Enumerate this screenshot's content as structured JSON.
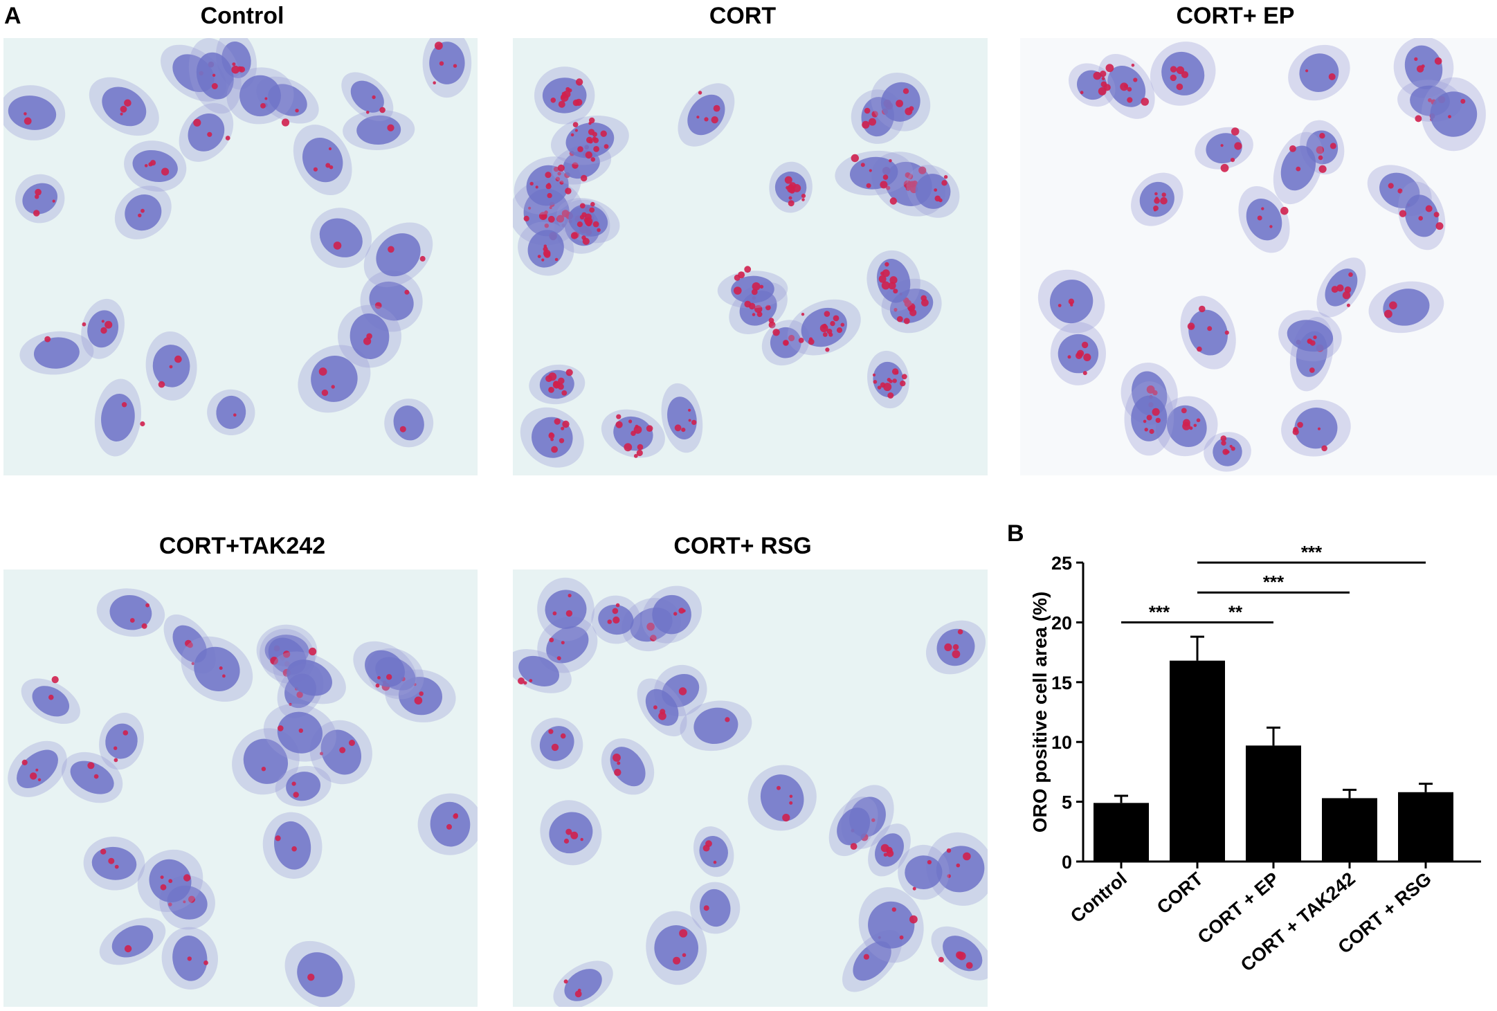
{
  "panel_a": {
    "letter": "A",
    "panels": [
      {
        "title": "Control"
      },
      {
        "title": "CORT"
      },
      {
        "title": "CORT+ EP"
      },
      {
        "title": "CORT+TAK242"
      },
      {
        "title": "CORT+ RSG"
      }
    ]
  },
  "panel_b": {
    "letter": "B"
  },
  "chart_data": {
    "type": "bar",
    "categories": [
      "Control",
      "CORT",
      "CORT + EP",
      "CORT + TAK242",
      "CORT + RSG"
    ],
    "values": [
      4.9,
      16.8,
      9.7,
      5.3,
      5.8
    ],
    "errors": [
      0.6,
      2.0,
      1.5,
      0.7,
      0.7
    ],
    "ylabel": "ORO positive cell area (%)",
    "ylim": [
      0,
      25
    ],
    "yticks": [
      0,
      5,
      10,
      15,
      20,
      25
    ],
    "bar_color": "#000000",
    "significance": [
      {
        "from": 0,
        "to": 1,
        "label": "***"
      },
      {
        "from": 1,
        "to": 2,
        "label": "**"
      },
      {
        "from": 1,
        "to": 3,
        "label": "***"
      },
      {
        "from": 1,
        "to": 4,
        "label": "***"
      }
    ]
  },
  "colors": {
    "background_micro": "#e8f3f3",
    "cell_body": "#9a9ed8",
    "nucleus": "#6f73c8",
    "lipid_droplet": "#d0204e"
  }
}
